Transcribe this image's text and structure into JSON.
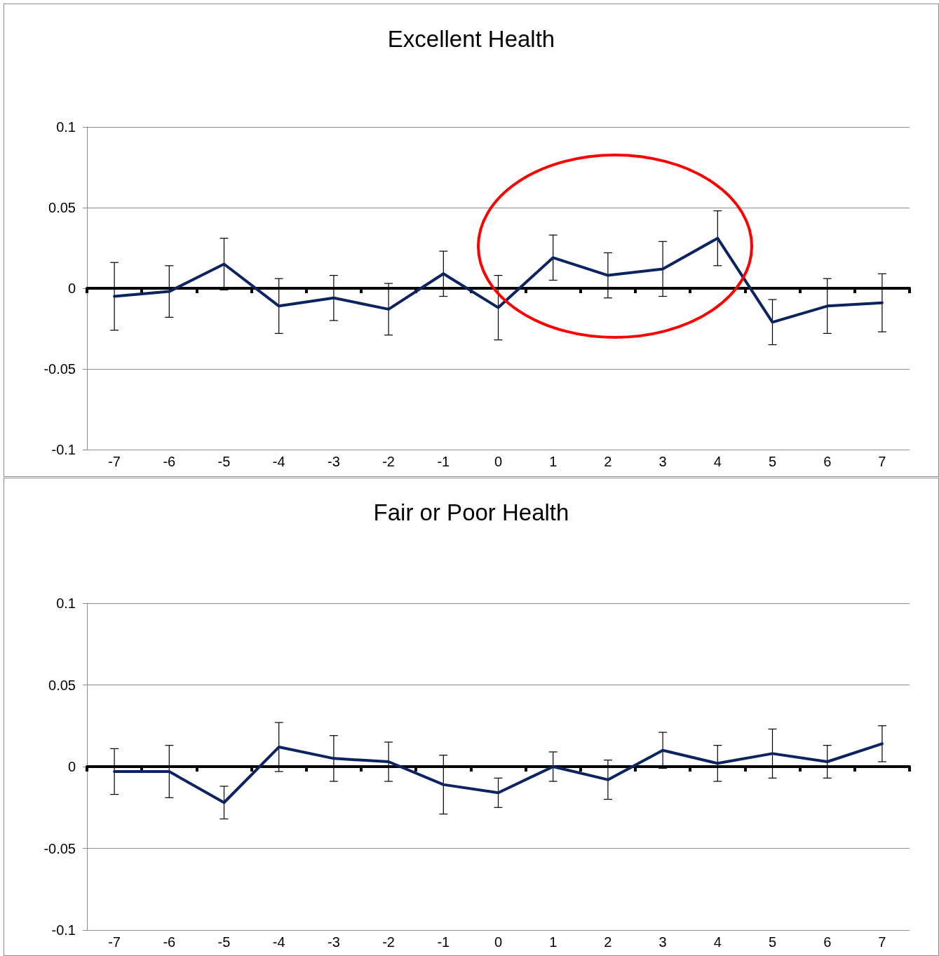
{
  "chart_data": [
    {
      "type": "line",
      "title": "Excellent Health",
      "categories": [
        "-7",
        "-6",
        "-5",
        "-4",
        "-3",
        "-2",
        "-1",
        "0",
        "1",
        "2",
        "3",
        "4",
        "5",
        "6",
        "7"
      ],
      "color": "#0b2460",
      "values": [
        -0.005,
        -0.002,
        0.015,
        -0.011,
        -0.006,
        -0.013,
        0.009,
        -0.012,
        0.019,
        0.008,
        0.012,
        0.031,
        -0.021,
        -0.011,
        -0.009
      ],
      "errors": [
        0.021,
        0.016,
        0.016,
        0.017,
        0.014,
        0.016,
        0.014,
        0.02,
        0.014,
        0.014,
        0.017,
        0.017,
        0.014,
        0.017,
        0.018
      ],
      "ylim": [
        -0.1,
        0.1
      ],
      "yticks": [
        -0.1,
        -0.05,
        0,
        0.05,
        0.1
      ],
      "grid": "y",
      "marker": "none",
      "line_style": "solid"
    },
    {
      "type": "line",
      "title": "Fair or Poor Health",
      "categories": [
        "-7",
        "-6",
        "-5",
        "-4",
        "-3",
        "-2",
        "-1",
        "0",
        "1",
        "2",
        "3",
        "4",
        "5",
        "6",
        "7"
      ],
      "color": "#0b2460",
      "values": [
        -0.003,
        -0.003,
        -0.022,
        0.012,
        0.005,
        0.003,
        -0.011,
        -0.016,
        0,
        -0.008,
        0.01,
        0.002,
        0.008,
        0.003,
        0.014
      ],
      "errors": [
        0.014,
        0.016,
        0.01,
        0.015,
        0.014,
        0.012,
        0.018,
        0.009,
        0.009,
        0.012,
        0.011,
        0.011,
        0.015,
        0.01,
        0.011
      ],
      "ylim": [
        -0.1,
        0.1
      ],
      "yticks": [
        -0.1,
        -0.05,
        0,
        0.05,
        0.1
      ],
      "grid": "y",
      "marker": "none",
      "line_style": "solid"
    }
  ]
}
